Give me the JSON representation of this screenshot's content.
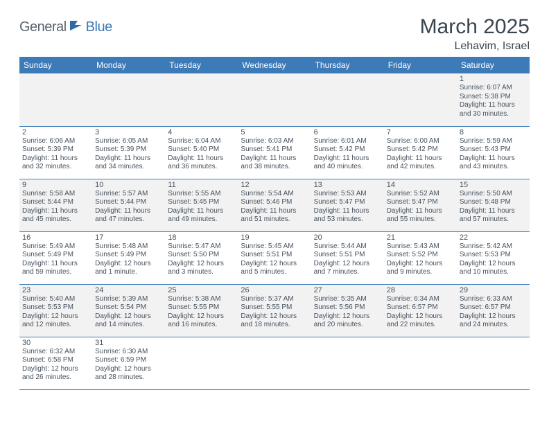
{
  "logo": {
    "general": "General",
    "blue": "Blue"
  },
  "title": "March 2025",
  "location": "Lehavim, Israel",
  "colors": {
    "header_bg": "#3d7ab8",
    "header_fg": "#ffffff",
    "row_alt_bg": "#f2f2f2",
    "row_bg": "#ffffff",
    "border": "#3d7ab8",
    "text": "#46525e",
    "title_text": "#3a4550"
  },
  "weekdays": [
    "Sunday",
    "Monday",
    "Tuesday",
    "Wednesday",
    "Thursday",
    "Friday",
    "Saturday"
  ],
  "cells": [
    [
      null,
      null,
      null,
      null,
      null,
      null,
      {
        "day": "1",
        "sunrise": "Sunrise: 6:07 AM",
        "sunset": "Sunset: 5:38 PM",
        "daylight1": "Daylight: 11 hours",
        "daylight2": "and 30 minutes."
      }
    ],
    [
      {
        "day": "2",
        "sunrise": "Sunrise: 6:06 AM",
        "sunset": "Sunset: 5:39 PM",
        "daylight1": "Daylight: 11 hours",
        "daylight2": "and 32 minutes."
      },
      {
        "day": "3",
        "sunrise": "Sunrise: 6:05 AM",
        "sunset": "Sunset: 5:39 PM",
        "daylight1": "Daylight: 11 hours",
        "daylight2": "and 34 minutes."
      },
      {
        "day": "4",
        "sunrise": "Sunrise: 6:04 AM",
        "sunset": "Sunset: 5:40 PM",
        "daylight1": "Daylight: 11 hours",
        "daylight2": "and 36 minutes."
      },
      {
        "day": "5",
        "sunrise": "Sunrise: 6:03 AM",
        "sunset": "Sunset: 5:41 PM",
        "daylight1": "Daylight: 11 hours",
        "daylight2": "and 38 minutes."
      },
      {
        "day": "6",
        "sunrise": "Sunrise: 6:01 AM",
        "sunset": "Sunset: 5:42 PM",
        "daylight1": "Daylight: 11 hours",
        "daylight2": "and 40 minutes."
      },
      {
        "day": "7",
        "sunrise": "Sunrise: 6:00 AM",
        "sunset": "Sunset: 5:42 PM",
        "daylight1": "Daylight: 11 hours",
        "daylight2": "and 42 minutes."
      },
      {
        "day": "8",
        "sunrise": "Sunrise: 5:59 AM",
        "sunset": "Sunset: 5:43 PM",
        "daylight1": "Daylight: 11 hours",
        "daylight2": "and 43 minutes."
      }
    ],
    [
      {
        "day": "9",
        "sunrise": "Sunrise: 5:58 AM",
        "sunset": "Sunset: 5:44 PM",
        "daylight1": "Daylight: 11 hours",
        "daylight2": "and 45 minutes."
      },
      {
        "day": "10",
        "sunrise": "Sunrise: 5:57 AM",
        "sunset": "Sunset: 5:44 PM",
        "daylight1": "Daylight: 11 hours",
        "daylight2": "and 47 minutes."
      },
      {
        "day": "11",
        "sunrise": "Sunrise: 5:55 AM",
        "sunset": "Sunset: 5:45 PM",
        "daylight1": "Daylight: 11 hours",
        "daylight2": "and 49 minutes."
      },
      {
        "day": "12",
        "sunrise": "Sunrise: 5:54 AM",
        "sunset": "Sunset: 5:46 PM",
        "daylight1": "Daylight: 11 hours",
        "daylight2": "and 51 minutes."
      },
      {
        "day": "13",
        "sunrise": "Sunrise: 5:53 AM",
        "sunset": "Sunset: 5:47 PM",
        "daylight1": "Daylight: 11 hours",
        "daylight2": "and 53 minutes."
      },
      {
        "day": "14",
        "sunrise": "Sunrise: 5:52 AM",
        "sunset": "Sunset: 5:47 PM",
        "daylight1": "Daylight: 11 hours",
        "daylight2": "and 55 minutes."
      },
      {
        "day": "15",
        "sunrise": "Sunrise: 5:50 AM",
        "sunset": "Sunset: 5:48 PM",
        "daylight1": "Daylight: 11 hours",
        "daylight2": "and 57 minutes."
      }
    ],
    [
      {
        "day": "16",
        "sunrise": "Sunrise: 5:49 AM",
        "sunset": "Sunset: 5:49 PM",
        "daylight1": "Daylight: 11 hours",
        "daylight2": "and 59 minutes."
      },
      {
        "day": "17",
        "sunrise": "Sunrise: 5:48 AM",
        "sunset": "Sunset: 5:49 PM",
        "daylight1": "Daylight: 12 hours",
        "daylight2": "and 1 minute."
      },
      {
        "day": "18",
        "sunrise": "Sunrise: 5:47 AM",
        "sunset": "Sunset: 5:50 PM",
        "daylight1": "Daylight: 12 hours",
        "daylight2": "and 3 minutes."
      },
      {
        "day": "19",
        "sunrise": "Sunrise: 5:45 AM",
        "sunset": "Sunset: 5:51 PM",
        "daylight1": "Daylight: 12 hours",
        "daylight2": "and 5 minutes."
      },
      {
        "day": "20",
        "sunrise": "Sunrise: 5:44 AM",
        "sunset": "Sunset: 5:51 PM",
        "daylight1": "Daylight: 12 hours",
        "daylight2": "and 7 minutes."
      },
      {
        "day": "21",
        "sunrise": "Sunrise: 5:43 AM",
        "sunset": "Sunset: 5:52 PM",
        "daylight1": "Daylight: 12 hours",
        "daylight2": "and 9 minutes."
      },
      {
        "day": "22",
        "sunrise": "Sunrise: 5:42 AM",
        "sunset": "Sunset: 5:53 PM",
        "daylight1": "Daylight: 12 hours",
        "daylight2": "and 10 minutes."
      }
    ],
    [
      {
        "day": "23",
        "sunrise": "Sunrise: 5:40 AM",
        "sunset": "Sunset: 5:53 PM",
        "daylight1": "Daylight: 12 hours",
        "daylight2": "and 12 minutes."
      },
      {
        "day": "24",
        "sunrise": "Sunrise: 5:39 AM",
        "sunset": "Sunset: 5:54 PM",
        "daylight1": "Daylight: 12 hours",
        "daylight2": "and 14 minutes."
      },
      {
        "day": "25",
        "sunrise": "Sunrise: 5:38 AM",
        "sunset": "Sunset: 5:55 PM",
        "daylight1": "Daylight: 12 hours",
        "daylight2": "and 16 minutes."
      },
      {
        "day": "26",
        "sunrise": "Sunrise: 5:37 AM",
        "sunset": "Sunset: 5:55 PM",
        "daylight1": "Daylight: 12 hours",
        "daylight2": "and 18 minutes."
      },
      {
        "day": "27",
        "sunrise": "Sunrise: 5:35 AM",
        "sunset": "Sunset: 5:56 PM",
        "daylight1": "Daylight: 12 hours",
        "daylight2": "and 20 minutes."
      },
      {
        "day": "28",
        "sunrise": "Sunrise: 6:34 AM",
        "sunset": "Sunset: 6:57 PM",
        "daylight1": "Daylight: 12 hours",
        "daylight2": "and 22 minutes."
      },
      {
        "day": "29",
        "sunrise": "Sunrise: 6:33 AM",
        "sunset": "Sunset: 6:57 PM",
        "daylight1": "Daylight: 12 hours",
        "daylight2": "and 24 minutes."
      }
    ],
    [
      {
        "day": "30",
        "sunrise": "Sunrise: 6:32 AM",
        "sunset": "Sunset: 6:58 PM",
        "daylight1": "Daylight: 12 hours",
        "daylight2": "and 26 minutes."
      },
      {
        "day": "31",
        "sunrise": "Sunrise: 6:30 AM",
        "sunset": "Sunset: 6:59 PM",
        "daylight1": "Daylight: 12 hours",
        "daylight2": "and 28 minutes."
      },
      null,
      null,
      null,
      null,
      null
    ]
  ]
}
